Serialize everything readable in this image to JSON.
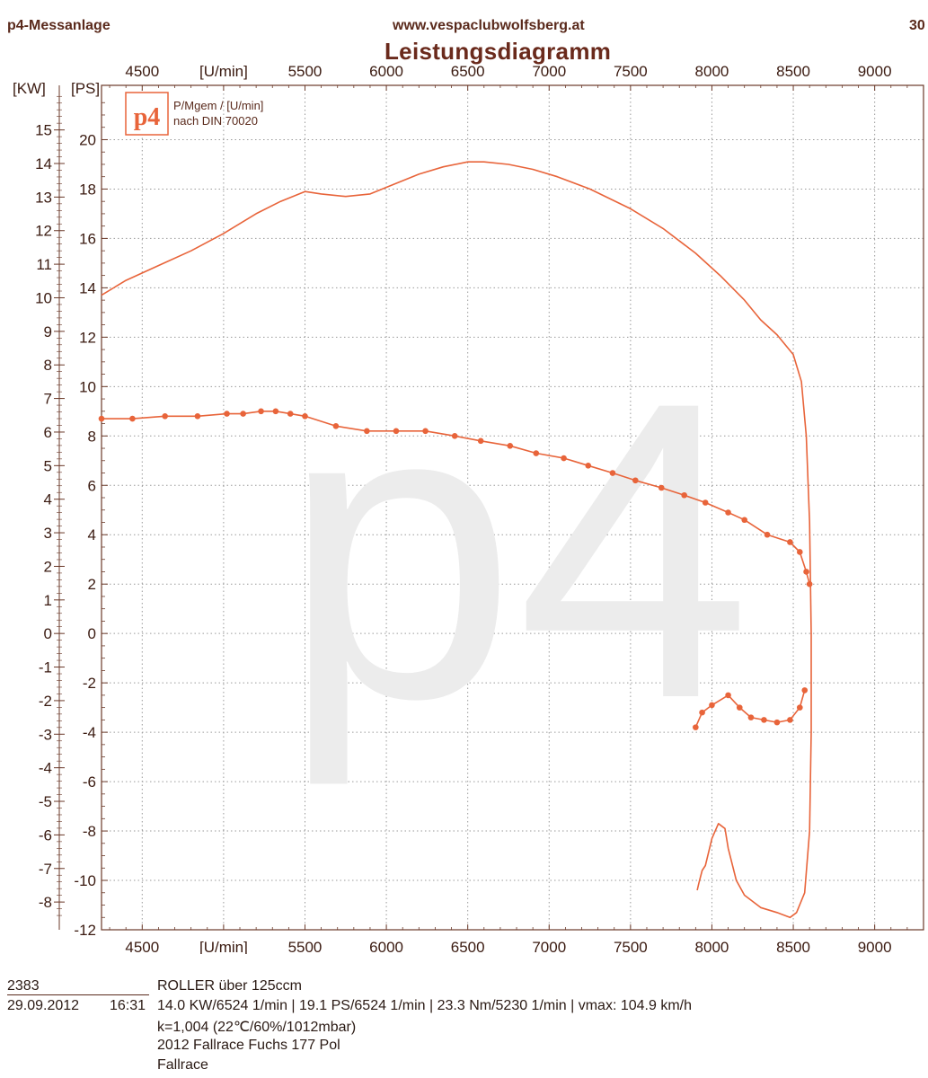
{
  "header": {
    "left": "p4-Messanlage",
    "center": "www.vespaclubwolfsberg.at",
    "right": "30",
    "title": "Leistungsdiagramm"
  },
  "logo": {
    "mark": "p4",
    "line1": "P/Mgem / [U/min]",
    "line2": "nach DIN 70020"
  },
  "watermark": "p4",
  "chart_data": {
    "type": "line",
    "title": "Leistungsdiagramm",
    "xlabel": "[U/min]",
    "ylabel_left": "[KW]",
    "ylabel_right": "[PS]",
    "xlim": [
      4250,
      9300
    ],
    "x_ticks": [
      4500,
      5000,
      5500,
      6000,
      6500,
      7000,
      7500,
      8000,
      8500,
      9000
    ],
    "x_tick_labels": [
      "4500",
      "[U/min]",
      "5500",
      "6000",
      "6500",
      "7000",
      "7500",
      "8000",
      "8500",
      "9000"
    ],
    "kw_ticks": [
      15,
      14,
      13,
      12,
      11,
      10,
      9,
      8,
      7,
      6,
      5,
      4,
      3,
      2,
      1,
      0,
      -1,
      -2,
      -3,
      -4,
      -5,
      -6,
      -7,
      -8
    ],
    "ps_ticks": [
      20,
      18,
      16,
      14,
      12,
      10,
      8,
      6,
      4,
      2,
      0,
      -2,
      -4,
      -6,
      -8,
      -10,
      -12
    ],
    "ps_range": [
      -12,
      22.2
    ],
    "grid": true,
    "series": [
      {
        "label": "power_ps",
        "unit": "PS",
        "color": "#e8643a",
        "markers": false,
        "points": [
          [
            4250,
            13.7
          ],
          [
            4400,
            14.3
          ],
          [
            4600,
            14.9
          ],
          [
            4800,
            15.5
          ],
          [
            5000,
            16.2
          ],
          [
            5200,
            17.0
          ],
          [
            5350,
            17.5
          ],
          [
            5500,
            17.9
          ],
          [
            5600,
            17.8
          ],
          [
            5750,
            17.7
          ],
          [
            5900,
            17.8
          ],
          [
            6050,
            18.2
          ],
          [
            6200,
            18.6
          ],
          [
            6350,
            18.9
          ],
          [
            6500,
            19.1
          ],
          [
            6600,
            19.1
          ],
          [
            6750,
            19.0
          ],
          [
            6900,
            18.8
          ],
          [
            7050,
            18.5
          ],
          [
            7250,
            18.0
          ],
          [
            7500,
            17.2
          ],
          [
            7700,
            16.4
          ],
          [
            7900,
            15.4
          ],
          [
            8050,
            14.5
          ],
          [
            8200,
            13.5
          ],
          [
            8300,
            12.7
          ],
          [
            8400,
            12.1
          ],
          [
            8500,
            11.3
          ],
          [
            8550,
            10.2
          ],
          [
            8580,
            8.0
          ],
          [
            8600,
            4.5
          ],
          [
            8610,
            0.0
          ],
          [
            8610,
            -4.0
          ],
          [
            8600,
            -8.0
          ],
          [
            8570,
            -10.5
          ],
          [
            8520,
            -11.3
          ],
          [
            8480,
            -11.5
          ],
          [
            8400,
            -11.3
          ],
          [
            8300,
            -11.1
          ],
          [
            8200,
            -10.6
          ],
          [
            8150,
            -10.0
          ],
          [
            8100,
            -8.7
          ],
          [
            8080,
            -7.9
          ],
          [
            8040,
            -7.7
          ],
          [
            8000,
            -8.3
          ],
          [
            7960,
            -9.4
          ],
          [
            7940,
            -9.6
          ],
          [
            7920,
            -10.1
          ],
          [
            7910,
            -10.4
          ]
        ]
      },
      {
        "label": "torque",
        "unit": "PS-axis units",
        "color": "#e8643a",
        "markers": true,
        "points": [
          [
            4250,
            8.7
          ],
          [
            4440,
            8.7
          ],
          [
            4640,
            8.8
          ],
          [
            4840,
            8.8
          ],
          [
            5020,
            8.9
          ],
          [
            5120,
            8.9
          ],
          [
            5230,
            9.0
          ],
          [
            5320,
            9.0
          ],
          [
            5410,
            8.9
          ],
          [
            5500,
            8.8
          ],
          [
            5690,
            8.4
          ],
          [
            5880,
            8.2
          ],
          [
            6060,
            8.2
          ],
          [
            6240,
            8.2
          ],
          [
            6420,
            8.0
          ],
          [
            6580,
            7.8
          ],
          [
            6760,
            7.6
          ],
          [
            6920,
            7.3
          ],
          [
            7090,
            7.1
          ],
          [
            7240,
            6.8
          ],
          [
            7390,
            6.5
          ],
          [
            7530,
            6.2
          ],
          [
            7690,
            5.9
          ],
          [
            7830,
            5.6
          ],
          [
            7960,
            5.3
          ],
          [
            8100,
            4.9
          ],
          [
            8200,
            4.6
          ],
          [
            8340,
            4.0
          ],
          [
            8480,
            3.7
          ],
          [
            8540,
            3.3
          ],
          [
            8580,
            2.5
          ],
          [
            8600,
            2.0
          ]
        ]
      },
      {
        "label": "torque_low",
        "unit": "PS-axis units",
        "color": "#e8643a",
        "markers": true,
        "points": [
          [
            7900,
            -3.8
          ],
          [
            7940,
            -3.2
          ],
          [
            8000,
            -2.9
          ],
          [
            8100,
            -2.5
          ],
          [
            8170,
            -3.0
          ],
          [
            8240,
            -3.4
          ],
          [
            8320,
            -3.5
          ],
          [
            8400,
            -3.6
          ],
          [
            8480,
            -3.5
          ],
          [
            8540,
            -3.0
          ],
          [
            8570,
            -2.3
          ]
        ]
      }
    ]
  },
  "info": {
    "id": "2383",
    "date": "29.09.2012",
    "time": "16:31",
    "vehicle": "ROLLER über 125ccm",
    "results": "14.0 KW/6524 1/min  |  19.1 PS/6524 1/min  |  23.3 Nm/5230 1/min | vmax: 104.9 km/h",
    "conditions": "k=1,004 (22℃/60%/1012mbar)",
    "line3": "2012 Fallrace Fuchs 177 Pol",
    "line4": "Fallrace"
  }
}
